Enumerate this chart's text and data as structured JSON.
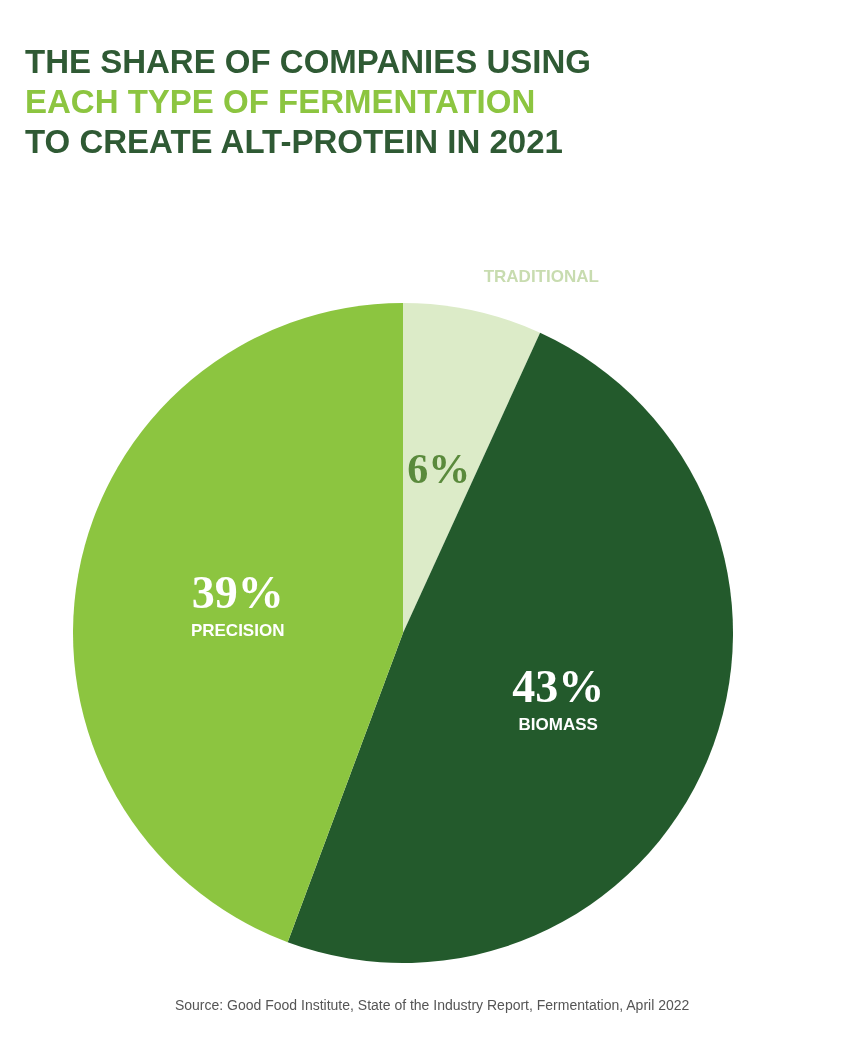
{
  "chart_data": {
    "type": "pie",
    "title": "THE SHARE OF COMPANIES USING\nEACH TYPE OF FERMENTATION\nTO CREATE ALT-PROTEIN IN 2021",
    "categories": [
      "TRADITIONAL",
      "BIOMASS",
      "PRECISION"
    ],
    "values": [
      6,
      43,
      39
    ],
    "value_labels": [
      "6%",
      "43%",
      "39%"
    ],
    "colors": [
      "#dcebc8",
      "#235a2c",
      "#8cc540"
    ],
    "legend": false,
    "annotations": [
      "Source: Good Food Institute, State of the Industry Report, Fermentation, April 2022"
    ]
  }
}
